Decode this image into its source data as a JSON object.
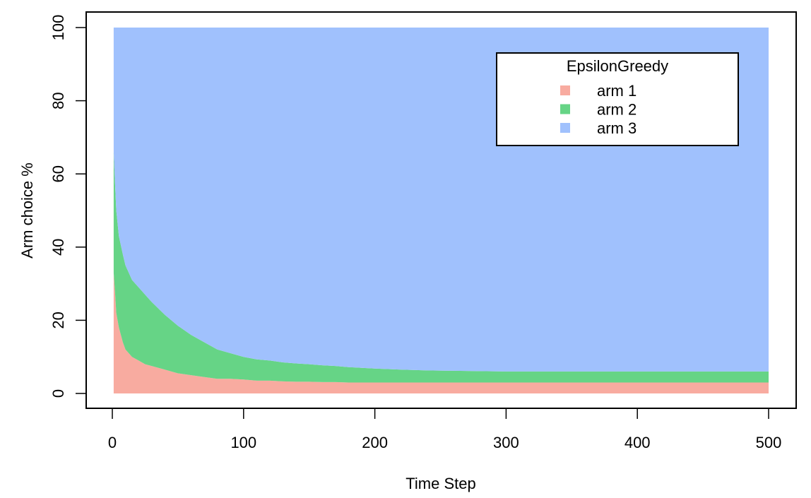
{
  "chart_data": {
    "type": "area",
    "stacked": true,
    "xlabel": "Time Step",
    "ylabel": "Arm choice %",
    "xlim": [
      0,
      500
    ],
    "ylim": [
      0,
      100
    ],
    "x_ticks": [
      0,
      100,
      200,
      300,
      400,
      500
    ],
    "y_ticks": [
      0,
      20,
      40,
      60,
      80,
      100
    ],
    "grid": false,
    "legend": {
      "title": "EpsilonGreedy",
      "placement": "top-right",
      "entries": [
        "arm 1",
        "arm 2",
        "arm 3"
      ]
    },
    "x": [
      1,
      2,
      3,
      5,
      8,
      10,
      15,
      20,
      25,
      30,
      40,
      50,
      60,
      70,
      80,
      90,
      100,
      110,
      120,
      130,
      140,
      150,
      160,
      170,
      180,
      190,
      200,
      220,
      240,
      260,
      280,
      300,
      320,
      340,
      360,
      380,
      400,
      420,
      440,
      460,
      480,
      500
    ],
    "series": [
      {
        "name": "arm 1",
        "color": "#f8aba0",
        "values": [
          33,
          28,
          22,
          18,
          14,
          12,
          10,
          9,
          8,
          7.5,
          6.5,
          5.5,
          5,
          4.5,
          4,
          4,
          3.8,
          3.5,
          3.5,
          3.3,
          3.2,
          3.2,
          3.1,
          3.1,
          3,
          3,
          3,
          3,
          3,
          3,
          3,
          3,
          3,
          3,
          3,
          3,
          3,
          3,
          3,
          3,
          3,
          3
        ]
      },
      {
        "name": "arm 2",
        "color": "#66d486",
        "values": [
          33,
          30,
          28,
          25,
          24,
          23,
          21,
          20,
          19,
          17.5,
          15,
          13,
          11,
          9.5,
          8,
          7,
          6.2,
          5.8,
          5.5,
          5.2,
          5,
          4.8,
          4.6,
          4.4,
          4.2,
          4,
          3.8,
          3.5,
          3.3,
          3.2,
          3.1,
          3,
          3,
          3,
          3,
          3,
          3,
          3,
          3,
          3,
          3,
          3
        ]
      },
      {
        "name": "arm 3",
        "color": "#a0c1fd",
        "values": [
          34,
          42,
          50,
          57,
          62,
          65,
          69,
          71,
          73,
          75,
          78.5,
          81.5,
          84,
          86,
          88,
          89,
          90,
          90.7,
          91,
          91.5,
          91.8,
          92,
          92.3,
          92.5,
          92.8,
          93,
          93.2,
          93.5,
          93.7,
          93.8,
          93.9,
          94,
          94,
          94,
          94,
          94,
          94,
          94,
          94,
          94,
          94,
          94
        ]
      }
    ]
  }
}
